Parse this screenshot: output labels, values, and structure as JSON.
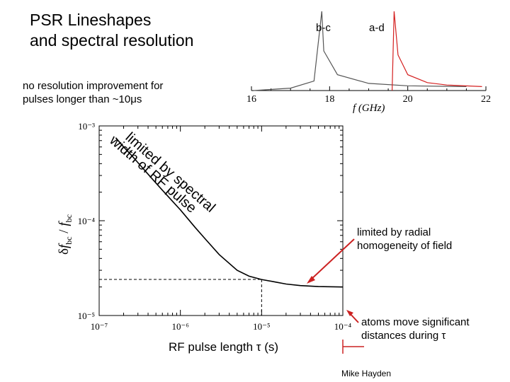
{
  "slide": {
    "title_line1": "PSR Lineshapes",
    "title_line2": "and spectral resolution",
    "note_top_line1": "no resolution improvement for",
    "note_top_line2": "pulses longer than ~10μs",
    "note_right1_line1": "limited by radial",
    "note_right1_line2": "homogeneity of field",
    "note_right2_line1": "atoms move significant",
    "note_right2_line2": "distances during τ",
    "credit": "Mike Hayden"
  },
  "colors": {
    "accent": "#cc2222",
    "line_bc": "#555555",
    "line_ad": "#d42020",
    "axis": "#000000",
    "dashed": "#000000"
  },
  "chart_data": [
    {
      "type": "line",
      "xlabel": "f (GHz)",
      "xlim": [
        16,
        22
      ],
      "x_ticks": [
        16,
        18,
        20,
        22
      ],
      "series": [
        {
          "name": "b-c",
          "peak_x": 17.8,
          "x": [
            16.05,
            17.0,
            17.6,
            17.8,
            17.85,
            18.2,
            19.0,
            20.0,
            21.5
          ],
          "y": [
            0.0,
            0.03,
            0.12,
            1.0,
            0.5,
            0.2,
            0.09,
            0.06,
            0.05
          ]
        },
        {
          "name": "a-d",
          "peak_x": 19.65,
          "x": [
            19.6,
            19.65,
            19.75,
            20.0,
            20.5,
            21.0,
            21.9
          ],
          "y": [
            0.0,
            1.0,
            0.45,
            0.2,
            0.1,
            0.07,
            0.05
          ]
        }
      ]
    },
    {
      "type": "line",
      "xlabel": "RF pulse length τ (s)",
      "ylabel": "δf_bc / f_bc",
      "log_x": true,
      "log_y": true,
      "xlim": [
        1e-07,
        0.0001
      ],
      "ylim": [
        1e-05,
        0.001
      ],
      "x_tick_labels": [
        "10⁻⁷",
        "10⁻⁶",
        "10⁻⁵",
        "10⁻⁴"
      ],
      "y_tick_labels": [
        "10⁻³",
        "10⁻⁴",
        "10⁻⁵"
      ],
      "annotation": {
        "line1": "limited by spectral",
        "line2": "width of RF pulse"
      },
      "dashed_marker_x": 1e-05,
      "series": [
        {
          "x": [
            1.6e-07,
            2e-07,
            2.5e-07,
            3e-07,
            4e-07,
            5e-07,
            6e-07,
            8e-07,
            1e-06,
            1.5e-06,
            2e-06,
            3e-06,
            5e-06,
            7e-06,
            1e-05,
            1.5e-05,
            2e-05,
            3e-05,
            5e-05,
            0.0001
          ],
          "y": [
            0.00075,
            0.0006,
            0.00049,
            0.00041,
            0.00031,
            0.00025,
            0.00021,
            0.00016,
            0.00013,
            8.6e-05,
            6.5e-05,
            4.4e-05,
            3e-05,
            2.6e-05,
            2.4e-05,
            2.25e-05,
            2.15e-05,
            2.07e-05,
            2.02e-05,
            2e-05
          ]
        }
      ]
    }
  ]
}
